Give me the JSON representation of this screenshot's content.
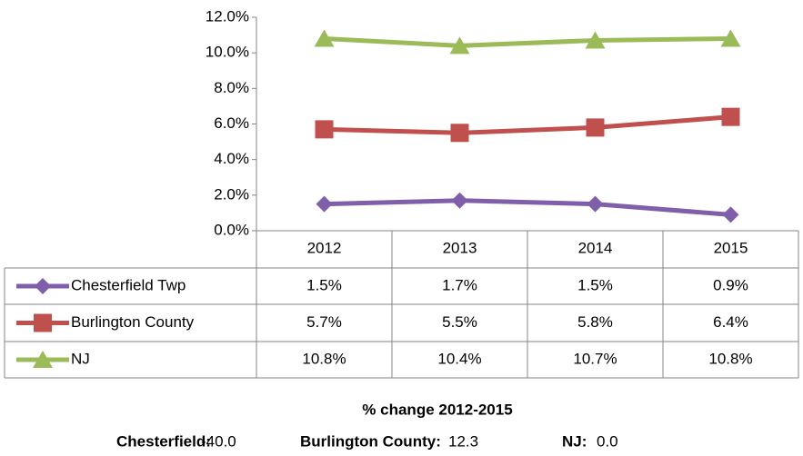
{
  "chart_data": {
    "type": "line",
    "categories": [
      "2012",
      "2013",
      "2014",
      "2015"
    ],
    "series": [
      {
        "name": "Chesterfield Twp",
        "color": "#7f5fa9",
        "marker": "diamond",
        "values": [
          1.5,
          1.7,
          1.5,
          0.9
        ],
        "value_labels": [
          "1.5%",
          "1.7%",
          "1.5%",
          "0.9%"
        ]
      },
      {
        "name": "Burlington County",
        "color": "#c0504d",
        "marker": "square",
        "values": [
          5.7,
          5.5,
          5.8,
          6.4
        ],
        "value_labels": [
          "5.7%",
          "5.5%",
          "5.8%",
          "6.4%"
        ]
      },
      {
        "name": "NJ",
        "color": "#9bbb59",
        "marker": "triangle",
        "values": [
          10.8,
          10.4,
          10.7,
          10.8
        ],
        "value_labels": [
          "10.8%",
          "10.4%",
          "10.7%",
          "10.8%"
        ]
      }
    ],
    "ylim": [
      0,
      12
    ],
    "yticks": [
      {
        "value": 0,
        "label": "0.0%"
      },
      {
        "value": 2,
        "label": "2.0%"
      },
      {
        "value": 4,
        "label": "4.0%"
      },
      {
        "value": 6,
        "label": "6.0%"
      },
      {
        "value": 8,
        "label": "8.0%"
      },
      {
        "value": 10,
        "label": "10.0%"
      },
      {
        "value": 12,
        "label": "12.0%"
      }
    ],
    "footer": {
      "title": "% change 2012-2015",
      "items": [
        {
          "label": "Chesterfield:",
          "value": "-40.0"
        },
        {
          "label": "Burlington County:",
          "value": "12.3"
        },
        {
          "label": "NJ:",
          "value": "0.0"
        }
      ]
    }
  }
}
